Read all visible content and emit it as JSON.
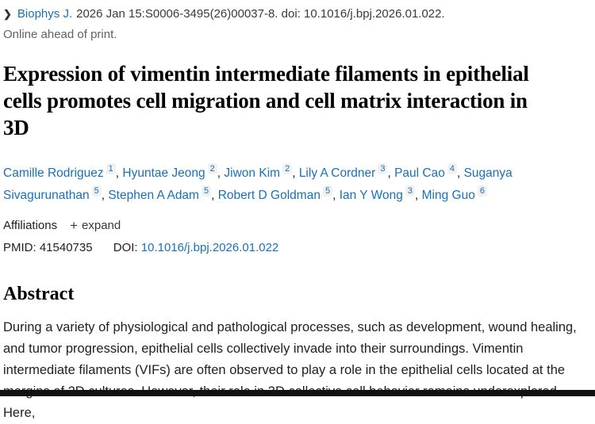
{
  "citation": {
    "journal_link": "Biophys J.",
    "details": "2026 Jan 15:S0006-3495(26)00037-8. doi: 10.1016/j.bpj.2026.01.022.",
    "status": "Online ahead of print."
  },
  "title": "Expression of vimentin intermediate filaments in epithelial cells promotes cell migration and cell matrix interaction in 3D",
  "authors": [
    {
      "name": "Camille Rodriguez",
      "sup": "1",
      "trail": ", "
    },
    {
      "name": "Hyuntae Jeong",
      "sup": "2",
      "trail": ", "
    },
    {
      "name": "Jiwon Kim",
      "sup": "2",
      "trail": ", "
    },
    {
      "name": "Lily A Cordner",
      "sup": "3",
      "trail": ", "
    },
    {
      "name": "Paul Cao",
      "sup": "4",
      "trail": ", "
    },
    {
      "name": "Suganya Sivagurunathan",
      "sup": "5",
      "trail": ", "
    },
    {
      "name": "Stephen A Adam",
      "sup": "5",
      "trail": ", "
    },
    {
      "name": "Robert D Goldman",
      "sup": "5",
      "trail": ", "
    },
    {
      "name": "Ian Y Wong",
      "sup": "3",
      "trail": ", "
    },
    {
      "name": "Ming Guo",
      "sup": "6",
      "trail": ""
    }
  ],
  "affiliations": {
    "label": "Affiliations",
    "plus_icon": "+",
    "expand_label": "expand"
  },
  "identifiers": {
    "pmid_label": "PMID:",
    "pmid_value": "41540735",
    "doi_label": "DOI:",
    "doi_value": "10.1016/j.bpj.2026.01.022"
  },
  "abstract": {
    "heading": "Abstract",
    "text": "During a variety of physiological and pathological processes, such as development, wound healing, and tumor progression, epithelial cells collectively invade into their surroundings. Vimentin intermediate filaments (VIFs) are often observed to play a role in the epithelial cells located at the margins of 2D cultures. However, their role in 3D collective cell behavior remains underexplored. Here,"
  },
  "icons": {
    "chevron_right": "❯"
  },
  "colors": {
    "link_blue": "#1871b8",
    "body_text": "#212121",
    "muted_gray": "#5f6368",
    "badge_background": "#f1f1f1",
    "bottom_bar": "#111111"
  }
}
